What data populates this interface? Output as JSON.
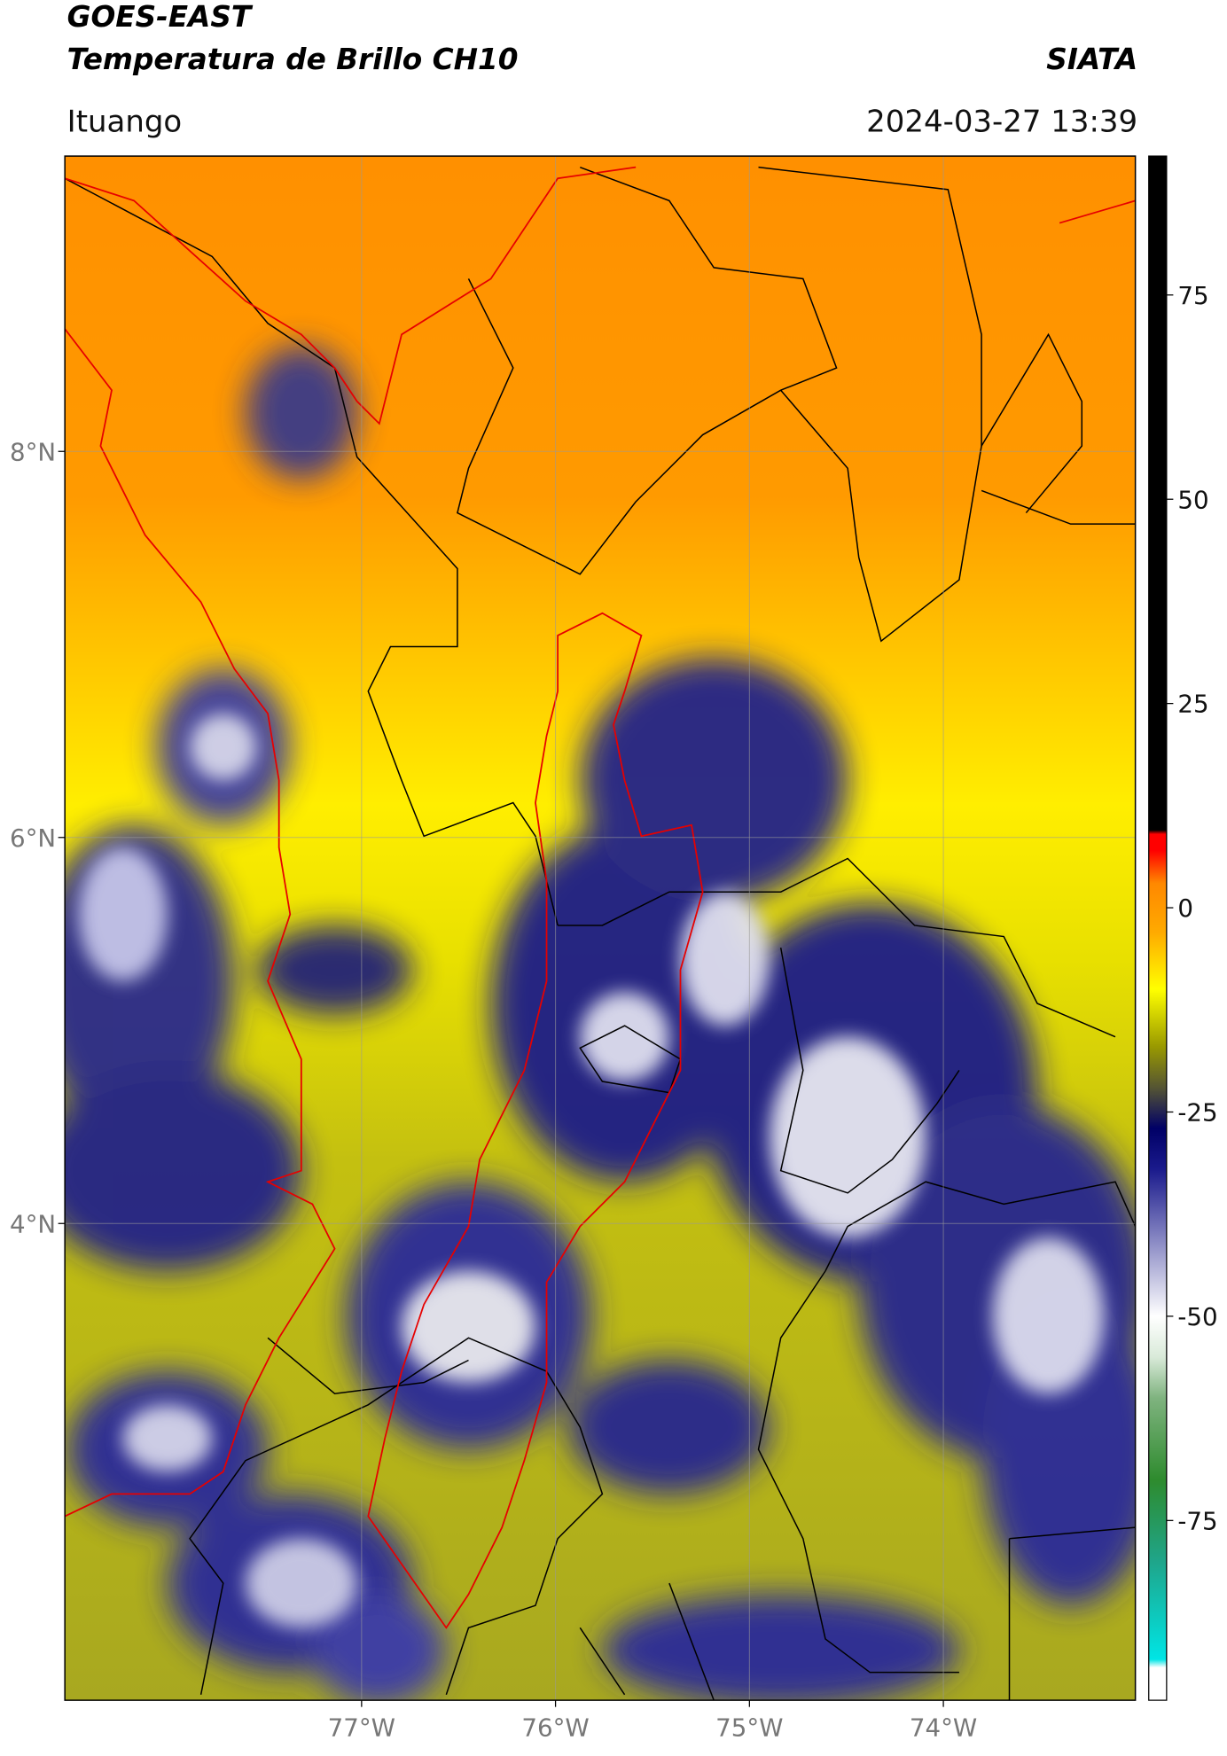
{
  "chart_data": {
    "type": "map",
    "title": "GOES-EAST",
    "subtitle": "Temperatura de Brillo CH10",
    "source": "SIATA",
    "location": "Ituango",
    "timestamp": "2024-03-27 13:39",
    "xlim": [
      -78.53,
      -73.01
    ],
    "ylim": [
      1.53,
      9.53
    ],
    "xticks": [
      {
        "value": -77,
        "label": "77°W"
      },
      {
        "value": -76,
        "label": "76°W"
      },
      {
        "value": -75,
        "label": "75°W"
      },
      {
        "value": -74,
        "label": "74°W"
      }
    ],
    "yticks": [
      {
        "value": 8,
        "label": "8°N"
      },
      {
        "value": 6,
        "label": "6°N"
      },
      {
        "value": 4,
        "label": "4°N"
      }
    ],
    "grid": true,
    "colorbar": {
      "lim": [
        -97,
        92
      ],
      "ticks": [
        75,
        50,
        25,
        0,
        -25,
        -50,
        -75
      ],
      "stops": [
        {
          "value": -97,
          "color": "#ffffff"
        },
        {
          "value": -93,
          "color": "#ffffff"
        },
        {
          "value": -92,
          "color": "#00e5e5"
        },
        {
          "value": -80,
          "color": "#1fa58a"
        },
        {
          "value": -70,
          "color": "#2e8b2e"
        },
        {
          "value": -60,
          "color": "#7fb37f"
        },
        {
          "value": -55,
          "color": "#d9ead9"
        },
        {
          "value": -50,
          "color": "#ffffff"
        },
        {
          "value": -42,
          "color": "#9999cc"
        },
        {
          "value": -32,
          "color": "#1a1a8c"
        },
        {
          "value": -27,
          "color": "#000066"
        },
        {
          "value": -22,
          "color": "#555533"
        },
        {
          "value": -17,
          "color": "#999900"
        },
        {
          "value": -10,
          "color": "#ffff00"
        },
        {
          "value": -3,
          "color": "#ffaa00"
        },
        {
          "value": 3,
          "color": "#ff8800"
        },
        {
          "value": 7,
          "color": "#ff0000"
        },
        {
          "value": 9,
          "color": "#ff0000"
        },
        {
          "value": 9.5,
          "color": "#000000"
        },
        {
          "value": 92,
          "color": "#000000"
        }
      ]
    }
  }
}
